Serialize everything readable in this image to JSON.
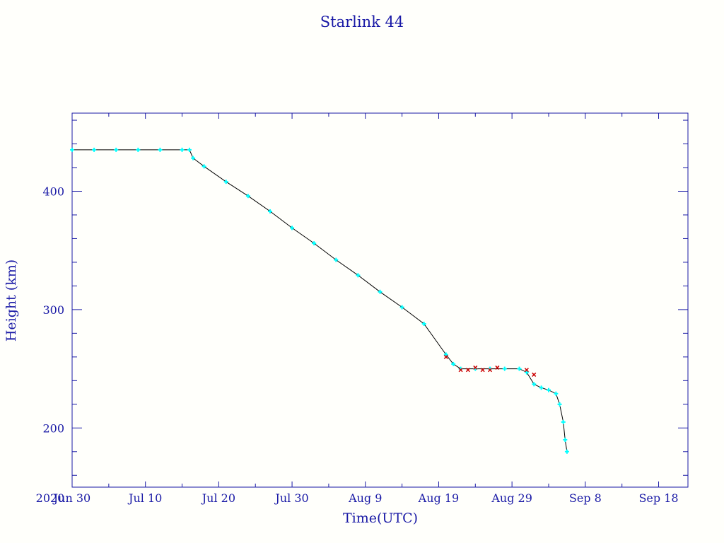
{
  "chart_data": {
    "type": "scatter",
    "title": "Starlink 44",
    "xlabel": "Time(UTC)",
    "ylabel": "Height (km)",
    "year_label": "2020",
    "x_ticks": [
      "Jun 30",
      "Jul 10",
      "Jul 20",
      "Jul 30",
      "Aug  9",
      "Aug 19",
      "Aug 29",
      "Sep  8",
      "Sep 18"
    ],
    "y_ticks": [
      200,
      300,
      400
    ],
    "xlim": [
      "2020-06-30",
      "2020-09-22"
    ],
    "ylim": [
      150,
      466
    ],
    "grid": false,
    "colors": {
      "axes": "#1a1aa6",
      "points": "#00ffff",
      "flagged_points": "#cc0000",
      "line": "#000000"
    },
    "series": [
      {
        "points": [
          [
            "2020-06-30",
            435
          ],
          [
            "2020-07-03",
            435
          ],
          [
            "2020-07-06",
            435
          ],
          [
            "2020-07-09",
            435
          ],
          [
            "2020-07-12",
            435
          ],
          [
            "2020-07-15",
            435
          ],
          [
            "2020-07-16",
            435
          ],
          [
            "2020-07-16T12:00",
            428
          ],
          [
            "2020-07-18",
            421
          ],
          [
            "2020-07-21",
            408
          ],
          [
            "2020-07-24",
            396
          ],
          [
            "2020-07-27",
            383
          ],
          [
            "2020-07-30",
            369
          ],
          [
            "2020-08-02",
            356
          ],
          [
            "2020-08-05",
            342
          ],
          [
            "2020-08-08",
            329
          ],
          [
            "2020-08-11",
            315
          ],
          [
            "2020-08-14",
            302
          ],
          [
            "2020-08-17",
            288
          ],
          [
            "2020-08-20",
            262
          ],
          [
            "2020-08-21",
            254
          ],
          [
            "2020-08-22",
            250
          ],
          [
            "2020-08-24",
            250
          ],
          [
            "2020-08-26",
            250
          ],
          [
            "2020-08-28",
            250
          ],
          [
            "2020-08-30",
            250
          ],
          [
            "2020-08-31",
            247
          ],
          [
            "2020-09-01",
            237
          ],
          [
            "2020-09-02",
            234
          ],
          [
            "2020-09-03",
            232
          ],
          [
            "2020-09-04",
            229
          ],
          [
            "2020-09-04T12:00",
            220
          ],
          [
            "2020-09-05",
            205
          ],
          [
            "2020-09-05T06:00",
            190
          ],
          [
            "2020-09-05T12:00",
            180
          ]
        ]
      },
      {
        "points": [
          [
            "2020-08-20",
            260
          ],
          [
            "2020-08-22",
            249
          ],
          [
            "2020-08-23",
            249
          ],
          [
            "2020-08-24",
            251
          ],
          [
            "2020-08-25",
            249
          ],
          [
            "2020-08-26",
            249
          ],
          [
            "2020-08-27",
            251
          ],
          [
            "2020-08-31",
            249
          ],
          [
            "2020-09-01",
            245
          ]
        ]
      }
    ]
  }
}
